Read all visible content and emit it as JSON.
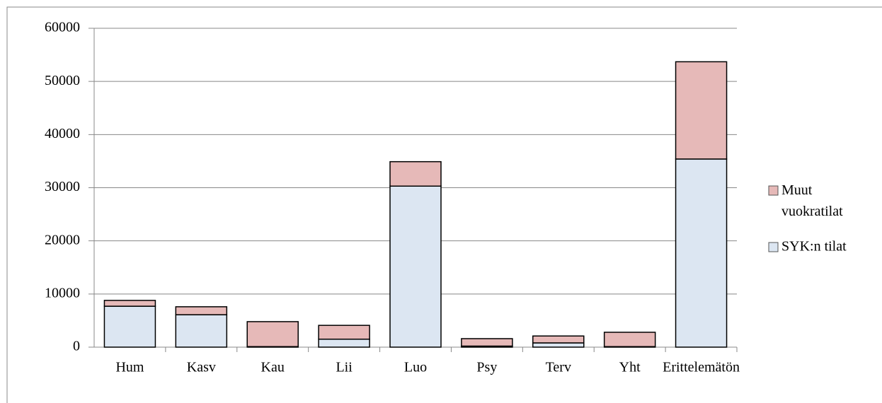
{
  "chart_data": {
    "type": "stacked_bar",
    "categories": [
      "Hum",
      "Kasv",
      "Kau",
      "Lii",
      "Luo",
      "Psy",
      "Terv",
      "Yht",
      "Erittelemätön"
    ],
    "series": [
      {
        "name": "SYK:n tilat",
        "color": "#dce6f2",
        "values": [
          7700,
          6100,
          100,
          1500,
          30300,
          200,
          800,
          100,
          35400
        ]
      },
      {
        "name": "Muut vuokratilat",
        "color": "#e6b9b8",
        "values": [
          1100,
          1500,
          4700,
          2600,
          4600,
          1400,
          1300,
          2700,
          18300
        ]
      }
    ],
    "ylim": [
      0,
      60000
    ],
    "yticks": [
      0,
      10000,
      20000,
      30000,
      40000,
      50000,
      60000
    ],
    "grid": true,
    "legend": "right"
  }
}
